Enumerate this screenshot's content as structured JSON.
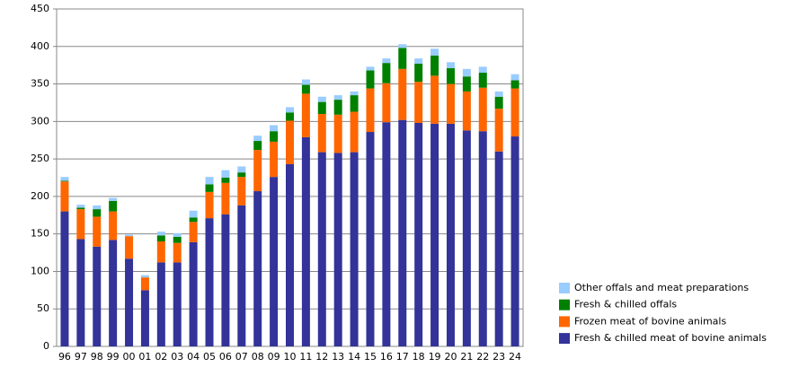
{
  "chart_data": {
    "type": "stacked-bar",
    "categories": [
      "96",
      "97",
      "98",
      "99",
      "00",
      "01",
      "02",
      "03",
      "04",
      "05",
      "06",
      "07",
      "08",
      "09",
      "10",
      "11",
      "12",
      "13",
      "14",
      "15",
      "16",
      "17",
      "18",
      "19",
      "20",
      "21",
      "22",
      "23",
      "24"
    ],
    "series": [
      {
        "name": "Fresh & chilled meat of bovine animals",
        "color": "#333399",
        "values": [
          180,
          143,
          133,
          142,
          117,
          75,
          112,
          112,
          139,
          171,
          176,
          188,
          207,
          226,
          243,
          279,
          259,
          258,
          259,
          286,
          299,
          302,
          298,
          297,
          297,
          288,
          287,
          260,
          280
        ]
      },
      {
        "name": "Frozen meat of bovine animals",
        "color": "#ff6600",
        "values": [
          40,
          40,
          40,
          38,
          30,
          17,
          28,
          26,
          27,
          35,
          42,
          38,
          55,
          47,
          58,
          58,
          51,
          51,
          54,
          58,
          52,
          68,
          55,
          64,
          53,
          52,
          58,
          57,
          64
        ]
      },
      {
        "name": "Fresh & chilled offals",
        "color": "#008000",
        "values": [
          1,
          2,
          10,
          14,
          0,
          0,
          8,
          8,
          6,
          10,
          7,
          6,
          12,
          14,
          11,
          12,
          16,
          20,
          22,
          24,
          27,
          28,
          24,
          27,
          21,
          20,
          20,
          16,
          11
        ]
      },
      {
        "name": "Other offals and meat preparations",
        "color": "#99ccff",
        "values": [
          5,
          4,
          5,
          4,
          2,
          3,
          5,
          5,
          9,
          10,
          10,
          8,
          7,
          8,
          7,
          7,
          7,
          6,
          5,
          5,
          6,
          5,
          7,
          9,
          8,
          10,
          8,
          7,
          8
        ]
      }
    ],
    "ylim": [
      0,
      450
    ],
    "yticks": [
      0,
      50,
      100,
      150,
      200,
      250,
      300,
      350,
      400,
      450
    ],
    "grid": true
  }
}
